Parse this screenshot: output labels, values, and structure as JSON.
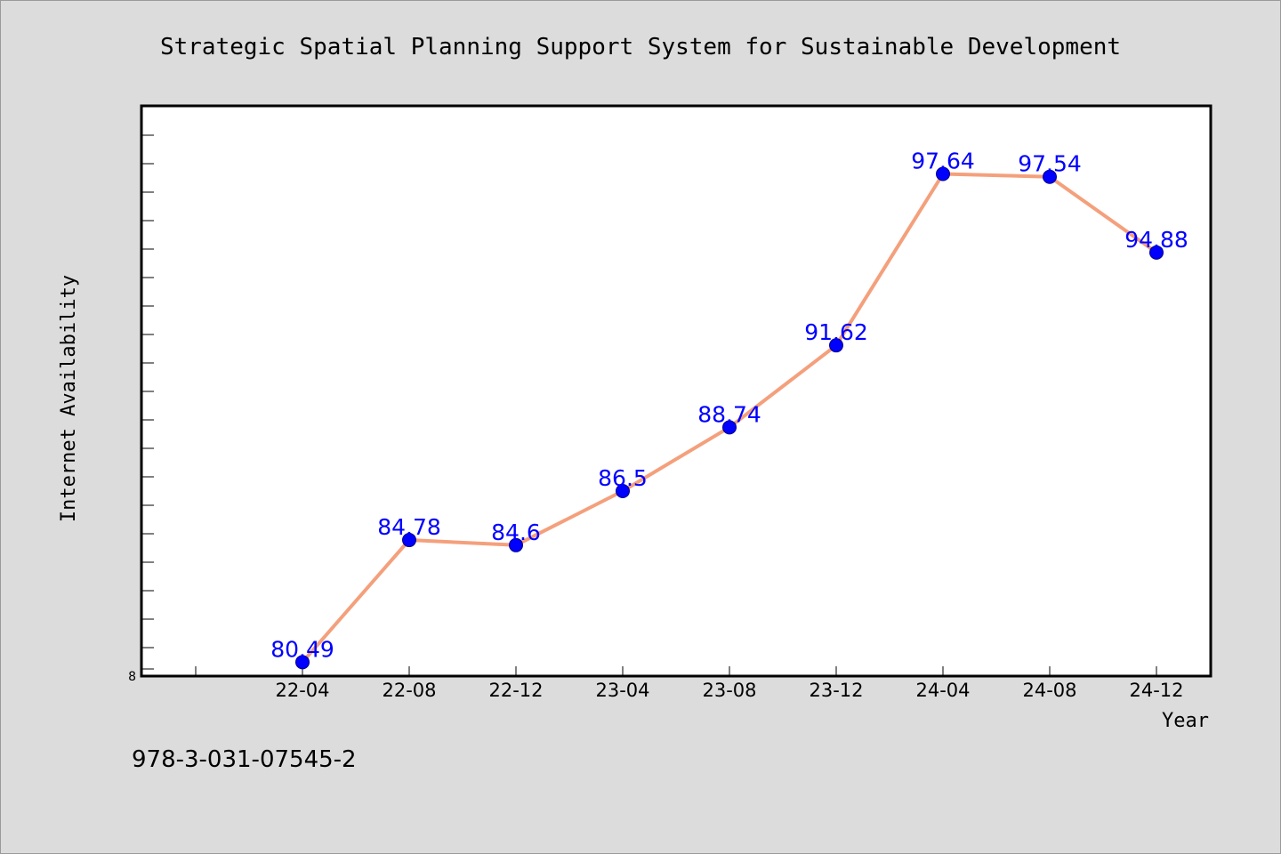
{
  "chart_data": {
    "type": "line",
    "title": "Strategic Spatial Planning Support System for Sustainable Development",
    "xlabel": "Year",
    "ylabel": "Internet Availability",
    "categories": [
      "22-04",
      "22-08",
      "22-12",
      "23-04",
      "23-08",
      "23-12",
      "24-04",
      "24-08",
      "24-12"
    ],
    "series": [
      {
        "values": [
          80.49,
          84.78,
          84.6,
          86.5,
          88.74,
          91.62,
          97.64,
          97.54,
          94.88
        ]
      }
    ],
    "data_labels": [
      "80.49",
      "84.78",
      "84.6",
      "86.5",
      "88.74",
      "91.62",
      "97.64",
      "97.54",
      "94.88"
    ],
    "ytick_labels": [
      "8"
    ],
    "ylim": [
      80.0,
      100.0
    ],
    "grid": false,
    "colors": {
      "line": "#f4a07c",
      "marker": "#0000ff",
      "label": "#0000ff"
    }
  },
  "footer": {
    "isbn": "978-3-031-07545-2"
  }
}
